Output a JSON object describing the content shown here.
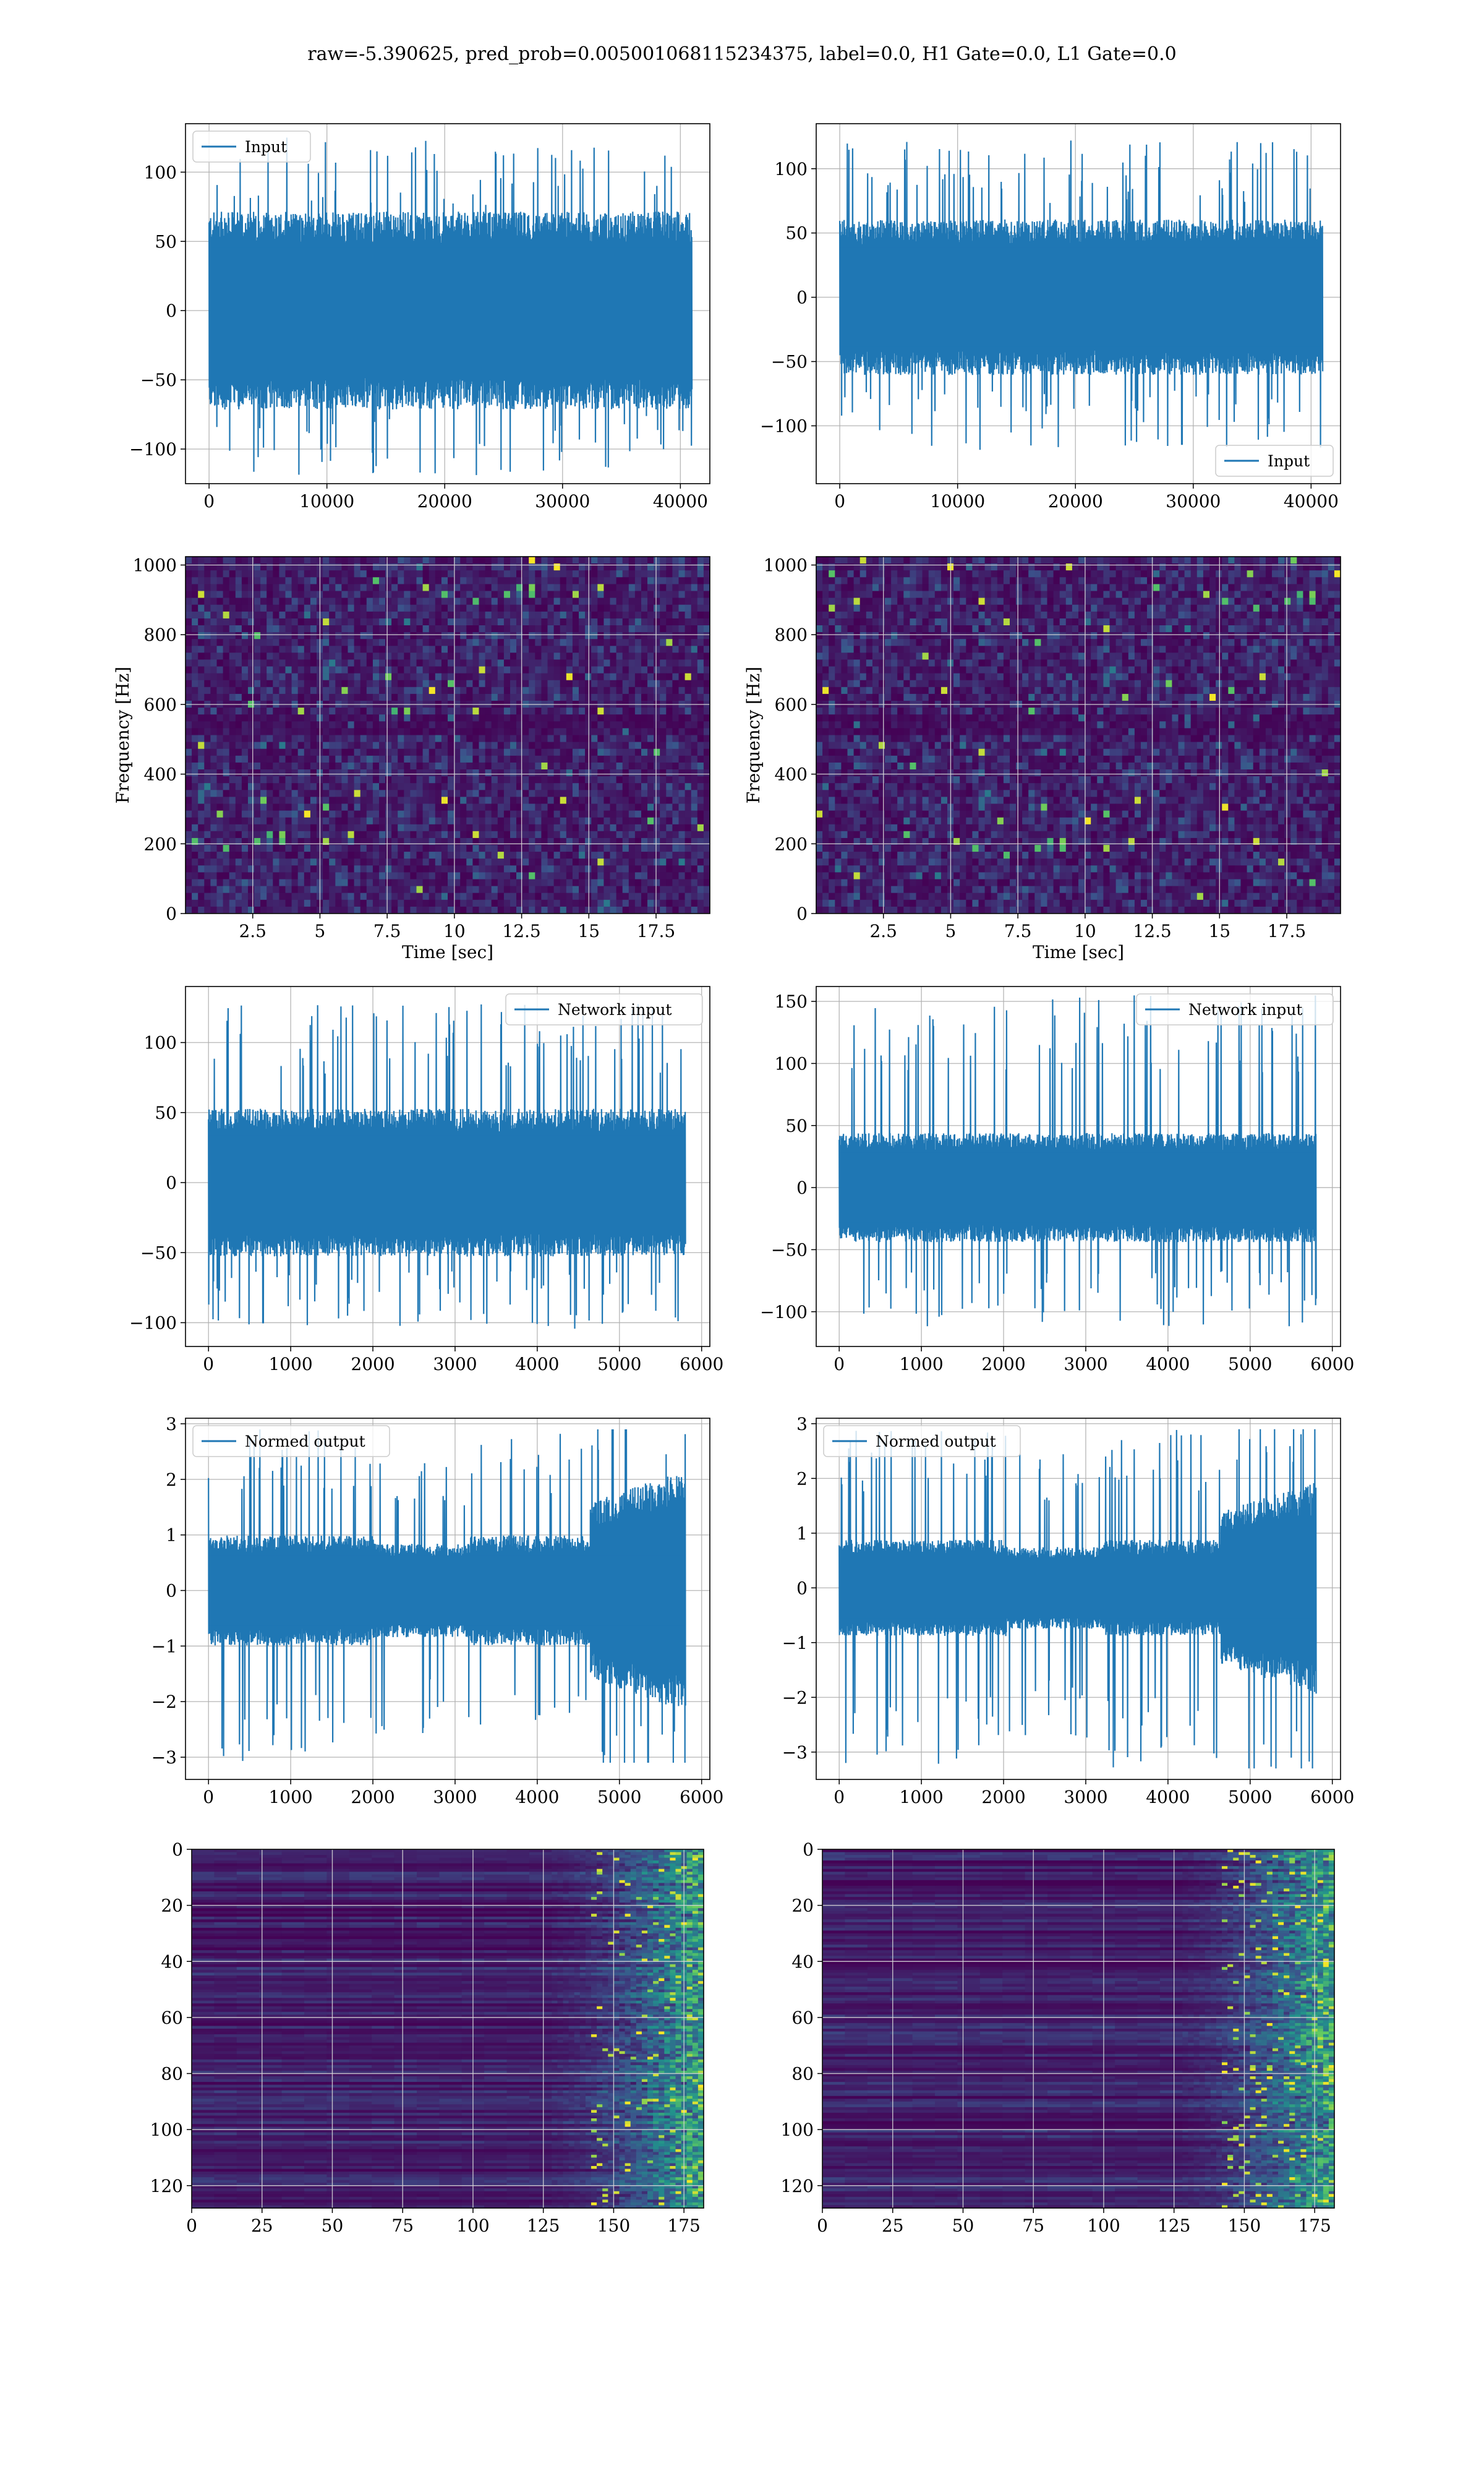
{
  "title": "raw=-5.390625, pred_prob=0.005001068115234375, label=0.0, H1 Gate=0.0, L1 Gate=0.0",
  "colors": {
    "line": "#1f77b4",
    "grid": "#b0b0b0",
    "viridis_dark": "#440154",
    "viridis_mid": "#21918c",
    "viridis_bright": "#fde725"
  },
  "chart_data": [
    {
      "id": "input-h1",
      "type": "line",
      "title": "",
      "xlabel": "",
      "ylabel": "",
      "xlim": [
        -2000,
        42500
      ],
      "ylim": [
        -125,
        135
      ],
      "xticks": [
        0,
        10000,
        20000,
        30000,
        40000
      ],
      "yticks": [
        -100,
        -50,
        0,
        50,
        100
      ],
      "grid": true,
      "legend_position": "upper left",
      "series": [
        {
          "name": "Input",
          "x_range": [
            0,
            40960
          ],
          "band": [
            -65,
            65
          ],
          "peak": [
            -120,
            127
          ]
        }
      ]
    },
    {
      "id": "input-l1",
      "type": "line",
      "title": "",
      "xlabel": "",
      "ylabel": "",
      "xlim": [
        -2000,
        42500
      ],
      "ylim": [
        -145,
        135
      ],
      "xticks": [
        0,
        10000,
        20000,
        30000,
        40000
      ],
      "yticks": [
        -100,
        -50,
        0,
        50,
        100
      ],
      "grid": true,
      "legend_position": "lower right",
      "series": [
        {
          "name": "Input",
          "x_range": [
            0,
            40960
          ],
          "band": [
            -55,
            55
          ],
          "peak": [
            -120,
            122
          ]
        }
      ]
    },
    {
      "id": "spec-h1",
      "type": "heatmap",
      "title": "",
      "xlabel": "Time [sec]",
      "ylabel": "Frequency [Hz]",
      "xlim": [
        0,
        19.5
      ],
      "ylim": [
        0,
        1024
      ],
      "xticks": [
        2.5,
        5.0,
        7.5,
        10.0,
        12.5,
        15.0,
        17.5
      ],
      "yticks": [
        0,
        200,
        400,
        600,
        800,
        1000
      ],
      "grid": true,
      "colormap": "viridis"
    },
    {
      "id": "spec-l1",
      "type": "heatmap",
      "title": "",
      "xlabel": "Time [sec]",
      "ylabel": "Frequency [Hz]",
      "xlim": [
        0,
        19.5
      ],
      "ylim": [
        0,
        1024
      ],
      "xticks": [
        2.5,
        5.0,
        7.5,
        10.0,
        12.5,
        15.0,
        17.5
      ],
      "yticks": [
        0,
        200,
        400,
        600,
        800,
        1000
      ],
      "grid": true,
      "colormap": "viridis"
    },
    {
      "id": "netin-h1",
      "type": "line",
      "title": "",
      "xlabel": "",
      "ylabel": "",
      "xlim": [
        -280,
        6100
      ],
      "ylim": [
        -117,
        140
      ],
      "xticks": [
        0,
        1000,
        2000,
        3000,
        4000,
        5000,
        6000
      ],
      "yticks": [
        -100,
        -50,
        0,
        50,
        100
      ],
      "grid": true,
      "legend_position": "upper right",
      "series": [
        {
          "name": "Network input",
          "x_range": [
            0,
            5800
          ],
          "band": [
            -48,
            48
          ],
          "peak": [
            -105,
            128
          ]
        }
      ]
    },
    {
      "id": "netin-l1",
      "type": "line",
      "title": "",
      "xlabel": "",
      "ylabel": "",
      "xlim": [
        -280,
        6100
      ],
      "ylim": [
        -128,
        162
      ],
      "xticks": [
        0,
        1000,
        2000,
        3000,
        4000,
        5000,
        6000
      ],
      "yticks": [
        -100,
        -50,
        0,
        50,
        100,
        150
      ],
      "grid": true,
      "legend_position": "upper right",
      "series": [
        {
          "name": "Network input",
          "x_range": [
            0,
            5800
          ],
          "band": [
            -40,
            40
          ],
          "peak": [
            -112,
            155
          ]
        }
      ]
    },
    {
      "id": "normed-h1",
      "type": "line",
      "title": "",
      "xlabel": "",
      "ylabel": "",
      "xlim": [
        -280,
        6100
      ],
      "ylim": [
        -3.4,
        3.1
      ],
      "xticks": [
        0,
        1000,
        2000,
        3000,
        4000,
        5000,
        6000
      ],
      "yticks": [
        -3,
        -2,
        -1,
        0,
        1,
        2,
        3
      ],
      "grid": true,
      "legend_position": "upper left",
      "series": [
        {
          "name": "Normed output",
          "x_range": [
            0,
            5800
          ],
          "band": [
            -0.9,
            0.9
          ],
          "peak": [
            -3.1,
            2.9
          ]
        }
      ]
    },
    {
      "id": "normed-l1",
      "type": "line",
      "title": "",
      "xlabel": "",
      "ylabel": "",
      "xlim": [
        -280,
        6100
      ],
      "ylim": [
        -3.5,
        3.1
      ],
      "xticks": [
        0,
        1000,
        2000,
        3000,
        4000,
        5000,
        6000
      ],
      "yticks": [
        -3,
        -2,
        -1,
        0,
        1,
        2,
        3
      ],
      "grid": true,
      "legend_position": "upper left",
      "series": [
        {
          "name": "Normed output",
          "x_range": [
            0,
            5800
          ],
          "band": [
            -0.8,
            0.8
          ],
          "peak": [
            -3.3,
            2.9
          ]
        }
      ]
    },
    {
      "id": "feat-h1",
      "type": "heatmap",
      "title": "",
      "xlabel": "",
      "ylabel": "",
      "xlim": [
        0,
        182
      ],
      "ylim": [
        128,
        0
      ],
      "xticks": [
        0,
        25,
        50,
        75,
        100,
        125,
        150,
        175
      ],
      "yticks": [
        0,
        20,
        40,
        60,
        80,
        100,
        120
      ],
      "grid": true,
      "colormap": "viridis"
    },
    {
      "id": "feat-l1",
      "type": "heatmap",
      "title": "",
      "xlabel": "",
      "ylabel": "",
      "xlim": [
        0,
        182
      ],
      "ylim": [
        128,
        0
      ],
      "xticks": [
        0,
        25,
        50,
        75,
        100,
        125,
        150,
        175
      ],
      "yticks": [
        0,
        20,
        40,
        60,
        80,
        100,
        120
      ],
      "grid": true,
      "colormap": "viridis"
    }
  ]
}
